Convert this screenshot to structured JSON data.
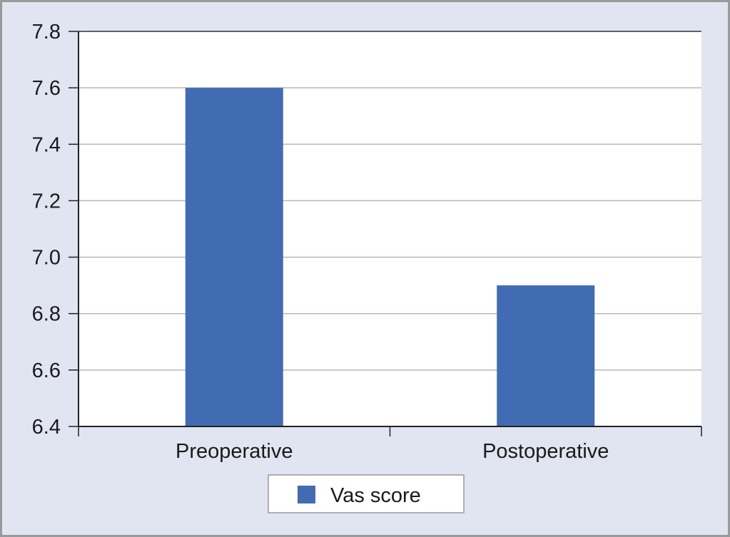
{
  "chart_data": {
    "type": "bar",
    "categories": [
      "Preoperative",
      "Postoperative"
    ],
    "series": [
      {
        "name": "Vas score",
        "values": [
          7.6,
          6.9
        ],
        "color": "#416bb3"
      }
    ],
    "ylim": [
      6.4,
      7.8
    ],
    "yticks": [
      "6.4",
      "6.6",
      "6.8",
      "7.0",
      "7.2",
      "7.4",
      "7.6",
      "7.8"
    ],
    "grid": true,
    "legend": "bottom-center",
    "title": "",
    "xlabel": "",
    "ylabel": ""
  }
}
